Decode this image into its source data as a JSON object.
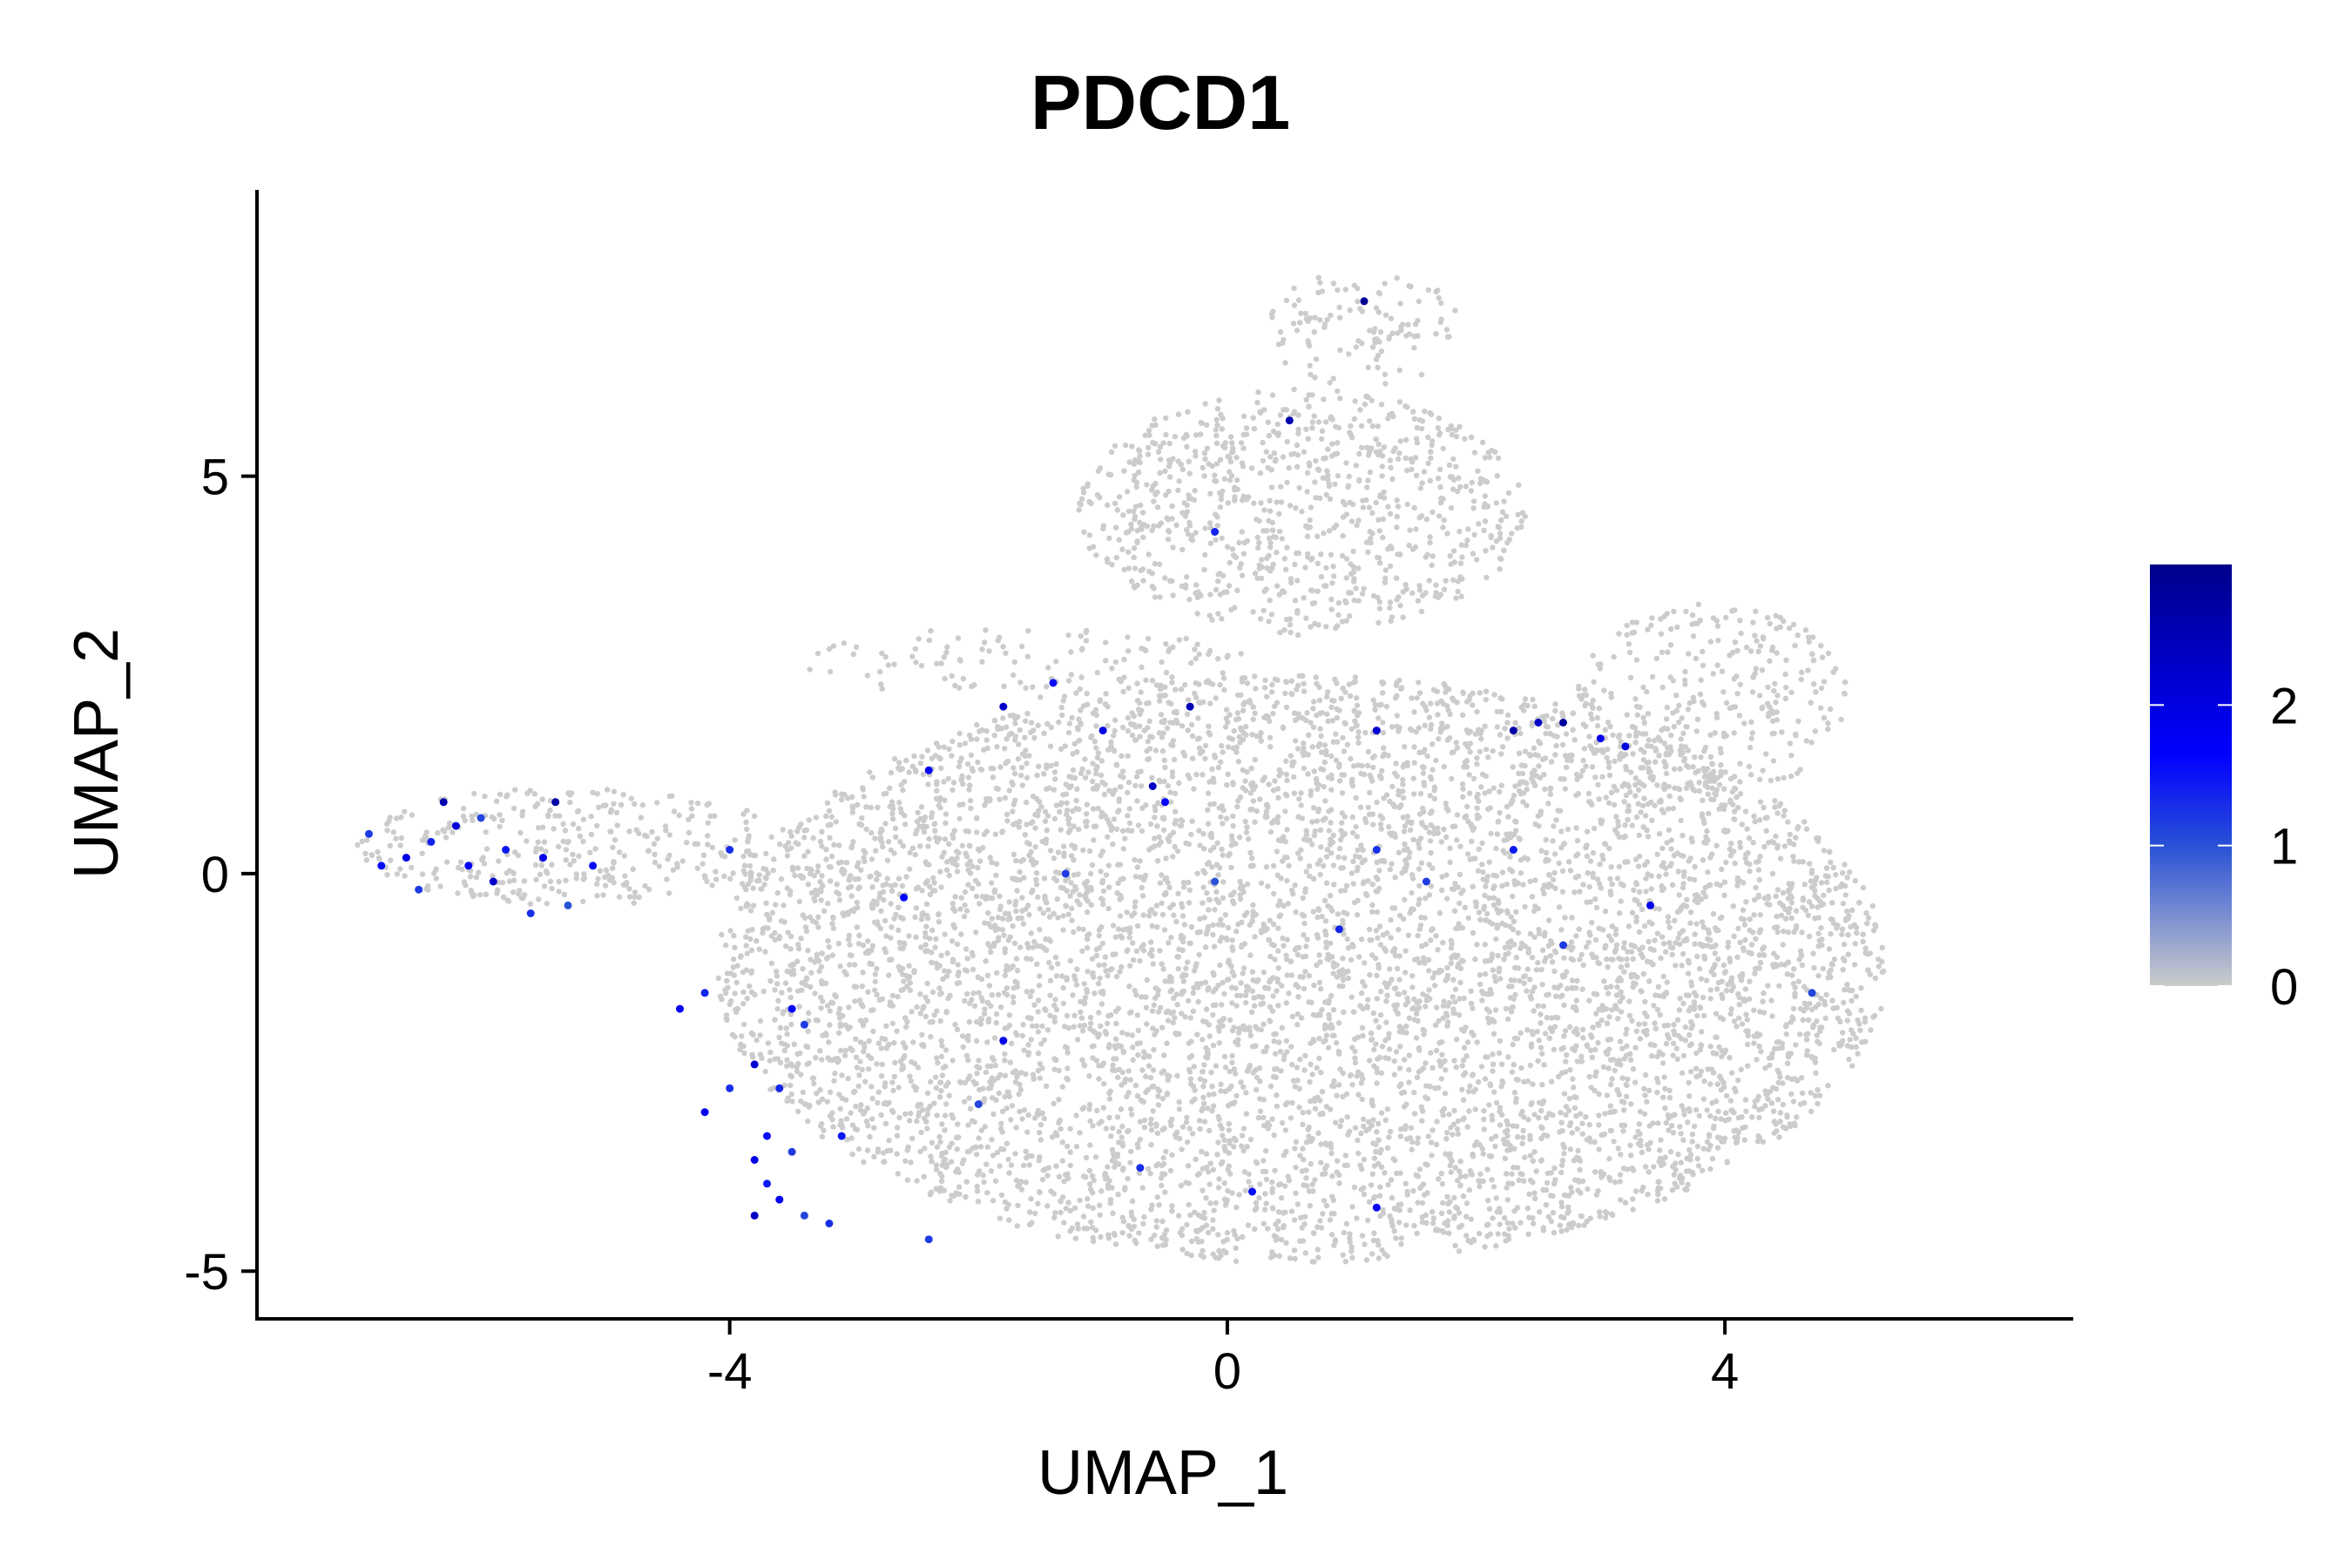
{
  "chart_data": {
    "type": "scatter",
    "title": "PDCD1",
    "xlabel": "UMAP_1",
    "ylabel": "UMAP_2",
    "xlim": [
      -7.8,
      6.8
    ],
    "ylim": [
      -5.6,
      8.6
    ],
    "xticks": [
      -4,
      0,
      4
    ],
    "xtick_labels": [
      "-4",
      "0",
      "4"
    ],
    "yticks": [
      -5,
      0,
      5
    ],
    "ytick_labels": [
      "-5",
      "0",
      "5"
    ],
    "grid": false,
    "legend": {
      "placement": "right",
      "type": "colorbar",
      "min": 0,
      "max": 3,
      "ticks": [
        0,
        1,
        2
      ],
      "tick_labels": [
        "0",
        "1",
        "2"
      ],
      "colors": [
        "#cccccc",
        "#2a52d6",
        "#0000ff",
        "#00008b"
      ]
    },
    "background_color": "#cccccc",
    "background_regions": [
      {
        "x0": -7.0,
        "x1": -3.5,
        "y0": -0.4,
        "y1": 1.1,
        "density": 0.7
      },
      {
        "x0": -3.5,
        "x1": -1.8,
        "y0": -0.6,
        "y1": 0.6,
        "density": 0.2
      },
      {
        "x0": -4.1,
        "x1": 5.3,
        "y0": -4.9,
        "y1": 2.5,
        "density": 1.0
      },
      {
        "x0": -3.4,
        "x1": 0.2,
        "y0": 2.2,
        "y1": 3.1,
        "density": 0.4
      },
      {
        "x0": -1.2,
        "x1": 2.4,
        "y0": 3.0,
        "y1": 6.1,
        "density": 0.8
      },
      {
        "x0": 0.3,
        "x1": 1.9,
        "y0": 6.1,
        "y1": 7.6,
        "density": 0.5
      },
      {
        "x0": 2.8,
        "x1": 5.0,
        "y0": 1.0,
        "y1": 3.4,
        "density": 0.6
      }
    ],
    "expressing_points": [
      {
        "x": -6.9,
        "y": 0.5,
        "v": 1.2
      },
      {
        "x": -6.8,
        "y": 0.1,
        "v": 1.6
      },
      {
        "x": -6.6,
        "y": 0.2,
        "v": 2.0
      },
      {
        "x": -6.4,
        "y": 0.4,
        "v": 1.4
      },
      {
        "x": -6.3,
        "y": 0.9,
        "v": 2.6
      },
      {
        "x": -6.1,
        "y": 0.1,
        "v": 1.8
      },
      {
        "x": -6.0,
        "y": 0.7,
        "v": 1.1
      },
      {
        "x": -5.9,
        "y": -0.1,
        "v": 2.3
      },
      {
        "x": -5.8,
        "y": 0.3,
        "v": 1.5
      },
      {
        "x": -5.6,
        "y": -0.5,
        "v": 1.3
      },
      {
        "x": -5.5,
        "y": 0.2,
        "v": 1.9
      },
      {
        "x": -5.4,
        "y": 0.9,
        "v": 2.7
      },
      {
        "x": -5.3,
        "y": -0.4,
        "v": 1.0
      },
      {
        "x": -5.1,
        "y": 0.1,
        "v": 1.6
      },
      {
        "x": -6.5,
        "y": -0.2,
        "v": 1.2
      },
      {
        "x": -6.2,
        "y": 0.6,
        "v": 2.1
      },
      {
        "x": -4.0,
        "y": 0.3,
        "v": 1.3
      },
      {
        "x": -4.4,
        "y": -1.7,
        "v": 1.8
      },
      {
        "x": -4.2,
        "y": -1.5,
        "v": 1.4
      },
      {
        "x": -3.5,
        "y": -1.7,
        "v": 1.7
      },
      {
        "x": -3.4,
        "y": -1.9,
        "v": 1.2
      },
      {
        "x": -4.2,
        "y": -3.0,
        "v": 1.9
      },
      {
        "x": -4.0,
        "y": -2.7,
        "v": 1.3
      },
      {
        "x": -3.8,
        "y": -2.4,
        "v": 2.2
      },
      {
        "x": -3.7,
        "y": -3.3,
        "v": 1.6
      },
      {
        "x": -3.6,
        "y": -2.7,
        "v": 1.4
      },
      {
        "x": -3.8,
        "y": -3.6,
        "v": 2.0
      },
      {
        "x": -3.7,
        "y": -3.9,
        "v": 1.5
      },
      {
        "x": -3.6,
        "y": -4.1,
        "v": 1.8
      },
      {
        "x": -3.5,
        "y": -3.5,
        "v": 1.2
      },
      {
        "x": -3.4,
        "y": -4.3,
        "v": 1.1
      },
      {
        "x": -3.8,
        "y": -4.3,
        "v": 2.4
      },
      {
        "x": -3.2,
        "y": -4.4,
        "v": 1.3
      },
      {
        "x": -2.4,
        "y": -4.6,
        "v": 1.2
      },
      {
        "x": -3.1,
        "y": -3.3,
        "v": 1.5
      },
      {
        "x": -2.6,
        "y": -0.3,
        "v": 1.7
      },
      {
        "x": -2.4,
        "y": 1.3,
        "v": 1.8
      },
      {
        "x": -1.8,
        "y": 2.1,
        "v": 2.3
      },
      {
        "x": -1.8,
        "y": -2.1,
        "v": 1.9
      },
      {
        "x": -2.0,
        "y": -2.9,
        "v": 1.1
      },
      {
        "x": -1.4,
        "y": 2.4,
        "v": 1.6
      },
      {
        "x": -1.3,
        "y": 0.0,
        "v": 1.2
      },
      {
        "x": -1.0,
        "y": 1.8,
        "v": 2.0
      },
      {
        "x": -0.6,
        "y": 1.1,
        "v": 2.4
      },
      {
        "x": -0.5,
        "y": 0.9,
        "v": 1.7
      },
      {
        "x": -0.7,
        "y": -3.7,
        "v": 1.3
      },
      {
        "x": -0.3,
        "y": 2.1,
        "v": 2.5
      },
      {
        "x": -0.1,
        "y": 4.3,
        "v": 1.4
      },
      {
        "x": 0.5,
        "y": 5.7,
        "v": 2.6
      },
      {
        "x": 1.1,
        "y": 7.2,
        "v": 2.9
      },
      {
        "x": 0.2,
        "y": -4.0,
        "v": 1.6
      },
      {
        "x": 0.9,
        "y": -0.7,
        "v": 1.4
      },
      {
        "x": 1.2,
        "y": 1.8,
        "v": 2.2
      },
      {
        "x": 1.2,
        "y": 0.3,
        "v": 1.3
      },
      {
        "x": 1.2,
        "y": -4.2,
        "v": 1.8
      },
      {
        "x": 1.6,
        "y": -0.1,
        "v": 1.2
      },
      {
        "x": 2.3,
        "y": 1.8,
        "v": 2.7
      },
      {
        "x": 2.5,
        "y": 1.9,
        "v": 2.3
      },
      {
        "x": 2.7,
        "y": 1.9,
        "v": 2.8
      },
      {
        "x": 3.0,
        "y": 1.7,
        "v": 1.9
      },
      {
        "x": 3.2,
        "y": 1.6,
        "v": 2.1
      },
      {
        "x": 2.3,
        "y": 0.3,
        "v": 1.5
      },
      {
        "x": 2.7,
        "y": -0.9,
        "v": 1.2
      },
      {
        "x": 3.4,
        "y": -0.4,
        "v": 1.9
      },
      {
        "x": 4.7,
        "y": -1.5,
        "v": 1.1
      },
      {
        "x": -0.1,
        "y": -0.1,
        "v": 1.0
      }
    ]
  }
}
